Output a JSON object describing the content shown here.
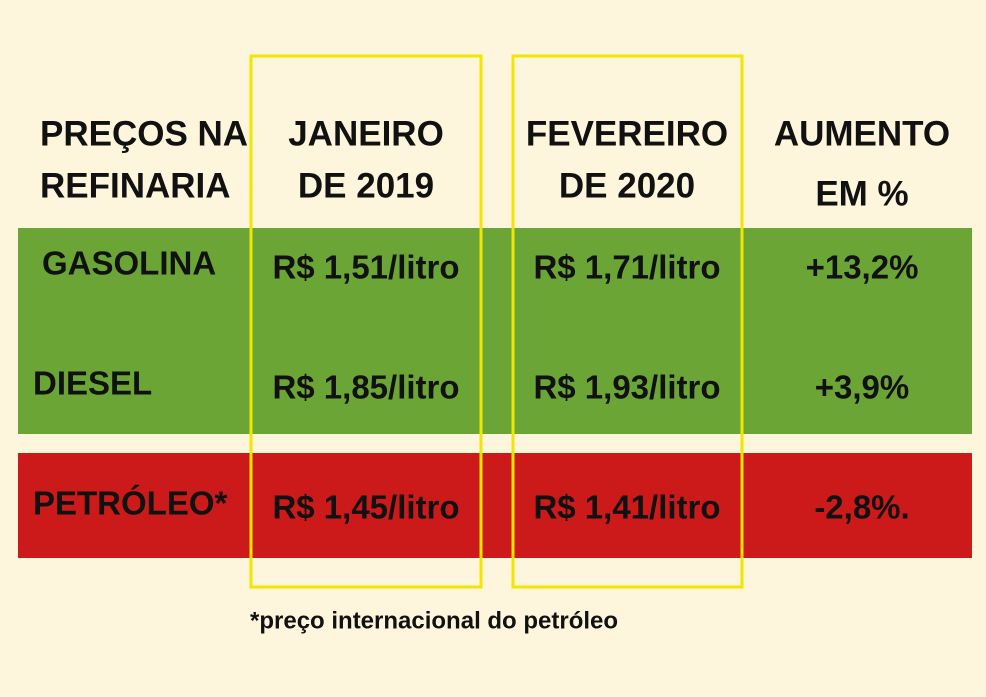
{
  "table": {
    "header": [
      [
        "PREÇOS NA",
        "REFINARIA"
      ],
      [
        "JANEIRO",
        "DE 2019"
      ],
      [
        "FEVEREIRO",
        "DE 2020"
      ],
      [
        "AUMENTO",
        "EM %"
      ]
    ],
    "rows": [
      [
        "GASOLINA",
        "R$ 1,51/litro",
        "R$ 1,71/litro",
        "+13,2%"
      ],
      [
        "DIESEL",
        "R$ 1,85/litro",
        "R$ 1,93/litro",
        "+3,9%"
      ],
      [
        "PETRÓLEO*",
        "R$ 1,45/litro",
        "R$ 1,41/litro",
        "-2,8%."
      ]
    ]
  },
  "footnote": "*preço internacional do petróleo"
}
